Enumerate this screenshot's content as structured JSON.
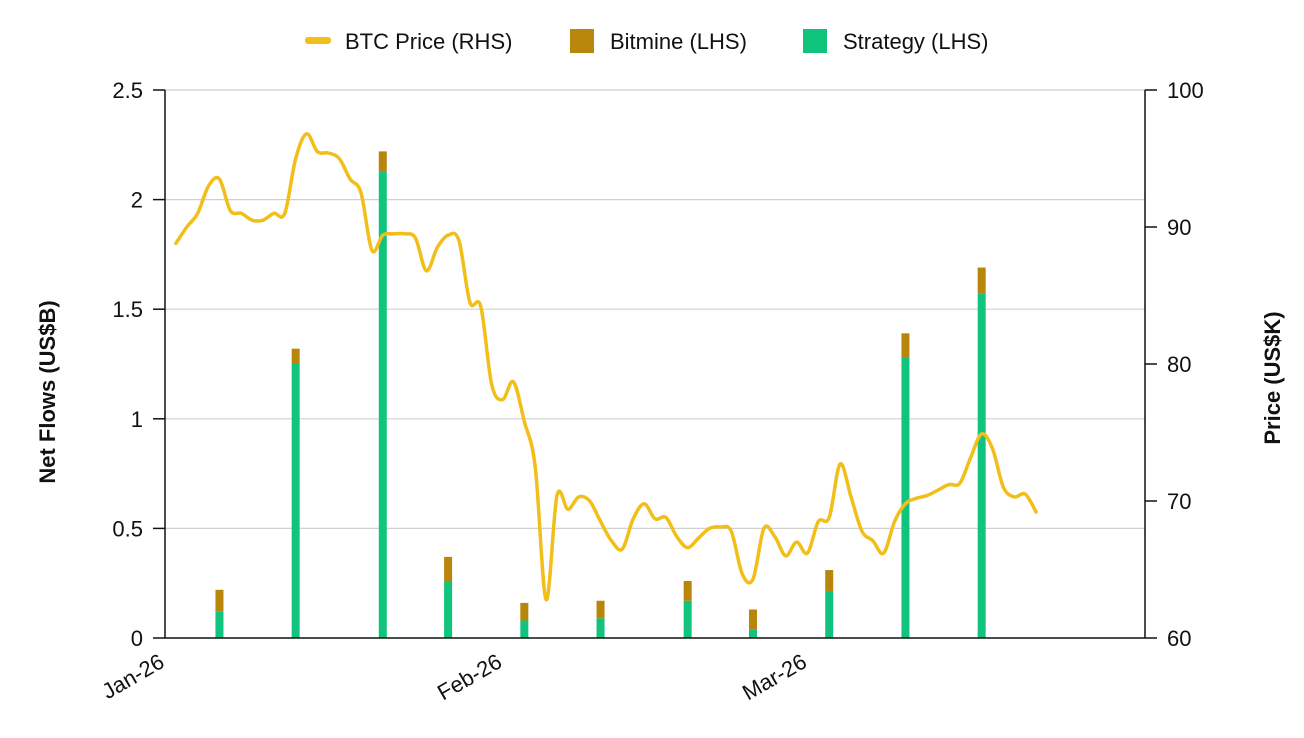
{
  "chart_data": {
    "type": "bar+line",
    "x_range": [
      "2025-12-31",
      "2026-03-31"
    ],
    "x_ticks": [
      {
        "date": "2026-01-01",
        "label": "Jan-26"
      },
      {
        "date": "2026-02-01",
        "label": "Feb-26"
      },
      {
        "date": "2026-03-01",
        "label": "Mar-26"
      }
    ],
    "left_axis": {
      "label": "Net Flows (US$B)",
      "ylim": [
        0,
        2.5
      ],
      "ticks": [
        {
          "value": 0,
          "label": "0"
        },
        {
          "value": 0.5,
          "label": "0.5"
        },
        {
          "value": 1,
          "label": "1"
        },
        {
          "value": 1.5,
          "label": "1.5"
        },
        {
          "value": 2,
          "label": "2"
        },
        {
          "value": 2.5,
          "label": "2.5"
        }
      ]
    },
    "right_axis": {
      "label": "Price (US$K)",
      "ylim": [
        60,
        100
      ],
      "ticks": [
        {
          "value": 60,
          "label": "60"
        },
        {
          "value": 70,
          "label": "70"
        },
        {
          "value": 80,
          "label": "80"
        },
        {
          "value": 90,
          "label": "90"
        },
        {
          "value": 100,
          "label": "100"
        }
      ]
    },
    "grid": true,
    "legend_position": "top-center",
    "legend": [
      {
        "name": "BTC Price (RHS)",
        "marker": "line",
        "color": "#F2BE1A"
      },
      {
        "name": "Bitmine (LHS)",
        "marker": "square",
        "color": "#B8860B"
      },
      {
        "name": "Strategy (LHS)",
        "marker": "square",
        "color": "#10C47D"
      }
    ],
    "bars": {
      "dates": [
        "2026-01-05",
        "2026-01-12",
        "2026-01-20",
        "2026-01-26",
        "2026-02-02",
        "2026-02-09",
        "2026-02-17",
        "2026-02-23",
        "2026-03-02",
        "2026-03-09",
        "2026-03-16"
      ],
      "series": [
        {
          "name": "Strategy (LHS)",
          "color": "#10C47D",
          "values": [
            0.12,
            1.25,
            2.13,
            0.26,
            0.08,
            0.09,
            0.17,
            0.04,
            0.21,
            1.28,
            1.57
          ]
        },
        {
          "name": "Bitmine (LHS)",
          "color": "#B8860B",
          "values": [
            0.1,
            0.07,
            0.09,
            0.11,
            0.08,
            0.08,
            0.09,
            0.09,
            0.1,
            0.11,
            0.12
          ]
        }
      ]
    },
    "line": {
      "name": "BTC Price (RHS)",
      "color": "#F2BE1A",
      "points": [
        [
          "2026-01-01",
          88.8
        ],
        [
          "2026-01-02",
          90.0
        ],
        [
          "2026-01-03",
          91.0
        ],
        [
          "2026-01-04",
          93.0
        ],
        [
          "2026-01-05",
          93.5
        ],
        [
          "2026-01-06",
          91.2
        ],
        [
          "2026-01-07",
          91.0
        ],
        [
          "2026-01-08",
          90.5
        ],
        [
          "2026-01-09",
          90.5
        ],
        [
          "2026-01-10",
          91.0
        ],
        [
          "2026-01-11",
          91.0
        ],
        [
          "2026-01-12",
          95.0
        ],
        [
          "2026-01-13",
          96.8
        ],
        [
          "2026-01-14",
          95.5
        ],
        [
          "2026-01-15",
          95.4
        ],
        [
          "2026-01-16",
          95.0
        ],
        [
          "2026-01-17",
          93.5
        ],
        [
          "2026-01-18",
          92.5
        ],
        [
          "2026-01-19",
          88.3
        ],
        [
          "2026-01-20",
          89.4
        ],
        [
          "2026-01-21",
          89.5
        ],
        [
          "2026-01-22",
          89.5
        ],
        [
          "2026-01-23",
          89.2
        ],
        [
          "2026-01-24",
          86.8
        ],
        [
          "2026-01-25",
          88.5
        ],
        [
          "2026-01-26",
          89.4
        ],
        [
          "2026-01-27",
          89.0
        ],
        [
          "2026-01-28",
          84.5
        ],
        [
          "2026-01-29",
          84.2
        ],
        [
          "2026-01-30",
          78.5
        ],
        [
          "2026-01-31",
          77.4
        ],
        [
          "2026-02-01",
          78.7
        ],
        [
          "2026-02-02",
          75.8
        ],
        [
          "2026-02-03",
          72.5
        ],
        [
          "2026-02-04",
          62.8
        ],
        [
          "2026-02-05",
          70.4
        ],
        [
          "2026-02-06",
          69.4
        ],
        [
          "2026-02-07",
          70.3
        ],
        [
          "2026-02-08",
          70.0
        ],
        [
          "2026-02-09",
          68.5
        ],
        [
          "2026-02-10",
          67.1
        ],
        [
          "2026-02-11",
          66.5
        ],
        [
          "2026-02-12",
          68.7
        ],
        [
          "2026-02-13",
          69.8
        ],
        [
          "2026-02-14",
          68.7
        ],
        [
          "2026-02-15",
          68.8
        ],
        [
          "2026-02-16",
          67.4
        ],
        [
          "2026-02-17",
          66.6
        ],
        [
          "2026-02-18",
          67.3
        ],
        [
          "2026-02-19",
          68.0
        ],
        [
          "2026-02-20",
          68.1
        ],
        [
          "2026-02-21",
          67.8
        ],
        [
          "2026-02-22",
          64.7
        ],
        [
          "2026-02-23",
          64.3
        ],
        [
          "2026-02-24",
          68.0
        ],
        [
          "2026-02-25",
          67.4
        ],
        [
          "2026-02-26",
          66.0
        ],
        [
          "2026-02-27",
          67.0
        ],
        [
          "2026-02-28",
          66.2
        ],
        [
          "2026-03-01",
          68.5
        ],
        [
          "2026-03-02",
          68.8
        ],
        [
          "2026-03-03",
          72.7
        ],
        [
          "2026-03-04",
          70.3
        ],
        [
          "2026-03-05",
          67.8
        ],
        [
          "2026-03-06",
          67.1
        ],
        [
          "2026-03-07",
          66.2
        ],
        [
          "2026-03-08",
          68.5
        ],
        [
          "2026-03-09",
          69.8
        ],
        [
          "2026-03-10",
          70.2
        ],
        [
          "2026-03-11",
          70.4
        ],
        [
          "2026-03-12",
          70.8
        ],
        [
          "2026-03-13",
          71.2
        ],
        [
          "2026-03-14",
          71.3
        ],
        [
          "2026-03-15",
          73.2
        ],
        [
          "2026-03-16",
          74.9
        ],
        [
          "2026-03-17",
          73.8
        ],
        [
          "2026-03-18",
          71.0
        ],
        [
          "2026-03-19",
          70.3
        ],
        [
          "2026-03-20",
          70.5
        ],
        [
          "2026-03-21",
          69.2
        ]
      ]
    }
  }
}
